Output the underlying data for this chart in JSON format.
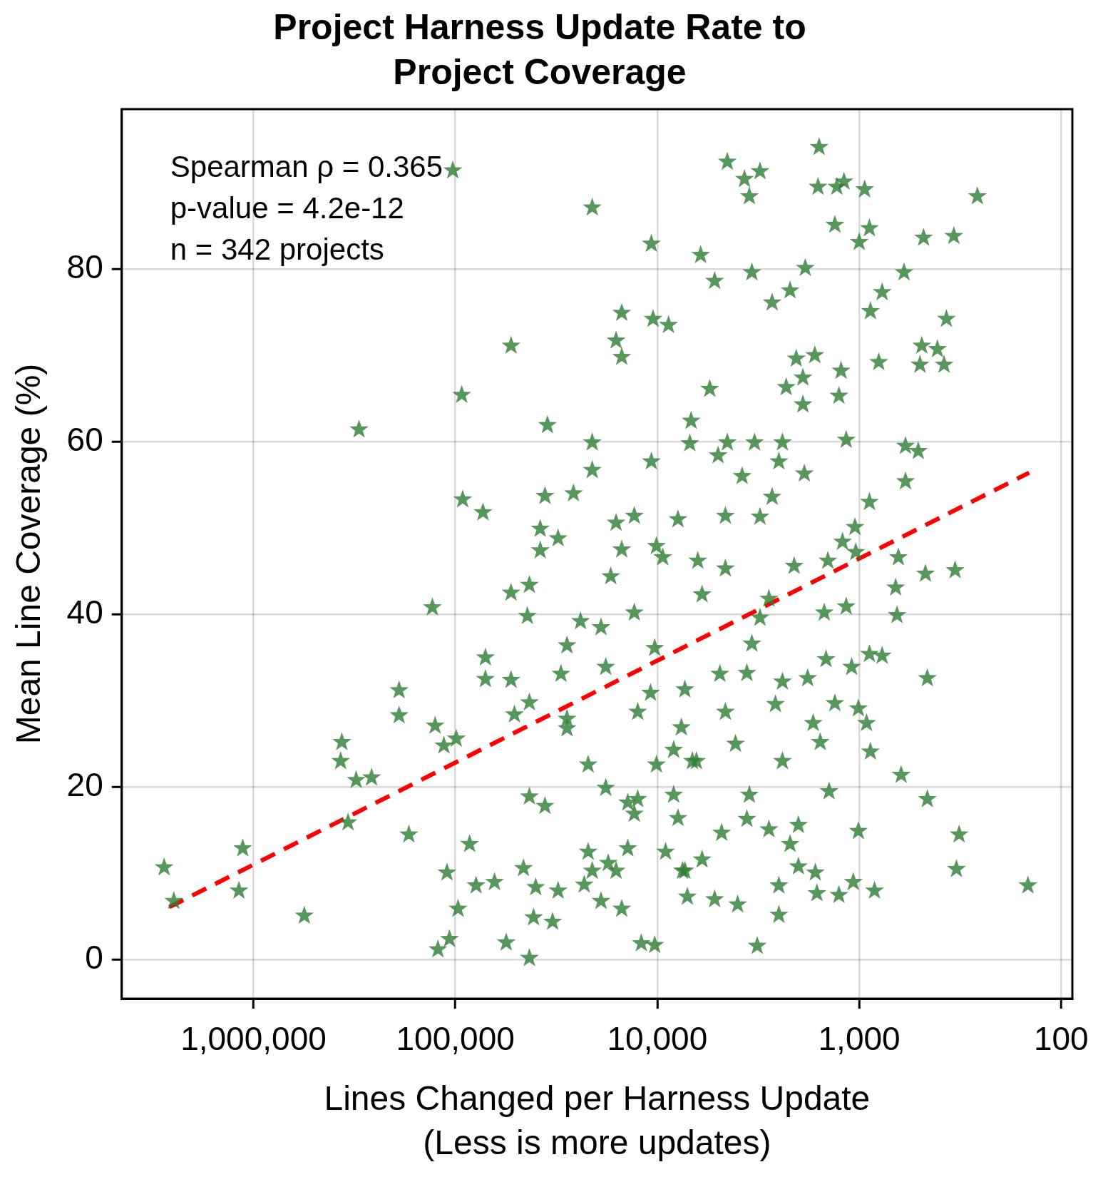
{
  "chart_data": {
    "type": "scatter",
    "title": "Project Harness Update Rate to\nProject Coverage",
    "xlabel": "Lines Changed per Harness Update\n(Less is more updates)",
    "ylabel": "Mean Line Coverage (%)",
    "annotations": [
      "Spearman ρ = 0.365",
      "p-value = 4.2e-12",
      "n = 342 projects"
    ],
    "xlim": [
      4490000,
      88
    ],
    "ylim": [
      -4.5,
      98.5
    ],
    "xticks": [
      {
        "value": 1000000,
        "label": "1,000,000"
      },
      {
        "value": 100000,
        "label": "100,000"
      },
      {
        "value": 10000,
        "label": "10,000"
      },
      {
        "value": 1000,
        "label": "1,000"
      },
      {
        "value": 100,
        "label": "100"
      }
    ],
    "yticks": [
      0,
      20,
      40,
      60,
      80
    ],
    "log": "x",
    "grid": true,
    "legend": false,
    "marker": "star",
    "series": [
      {
        "type": "scatter",
        "color": "#2e7d32",
        "x": [
          2770000,
          2480000,
          1130000,
          1180000,
          560000,
          365000,
          370000,
          300000,
          310000,
          260000,
          340000,
          190000,
          190000,
          170000,
          130000,
          126000,
          114000,
          99000,
          103000,
          93000,
          92000,
          73000,
          122000,
          110000,
          107000,
          97000,
          85000,
          79000,
          71000,
          71000,
          64000,
          53000,
          53000,
          53000,
          51000,
          43000,
          44000,
          43000,
          56000,
          43000,
          46000,
          43000,
          35000,
          36000,
          38000,
          31000,
          38000,
          41000,
          40000,
          36000,
          33000,
          31000,
          30000,
          28000,
          28000,
          24000,
          26000,
          21000,
          21000,
          21000,
          22000,
          22000,
          23000,
          19000,
          18000,
          16000,
          17000,
          15000,
          16000,
          15000,
          15000,
          18000,
          17500,
          15000,
          13000,
          14000,
          13000,
          12500,
          12000,
          10700,
          10700,
          10500,
          10100,
          10300,
          10800,
          10100,
          10300,
          8800,
          9400,
          9100,
          8300,
          7900,
          7300,
          7500,
          6800,
          6900,
          6100,
          5500,
          5200,
          6300,
          6000,
          6400,
          6000,
          5200,
          4500,
          3700,
          3100,
          3500,
          4500,
          5000,
          4600,
          4600,
          4900,
          4600,
          4100,
          4800,
          4000,
          3400,
          3300,
          3800,
          3100,
          3600,
          3400,
          3100,
          3500,
          3600,
          3200,
          2700,
          2200,
          2400,
          2500,
          2700,
          2800,
          2400,
          2600,
          2400,
          2800,
          2500,
          2500,
          2300,
          1850,
          2050,
          1900,
          1900,
          1870,
          2100,
          1800,
          2200,
          2000,
          2000,
          1660,
          1580,
          1600,
          1690,
          1560,
          1430,
          1490,
          1460,
          1410,
          1650,
          1620,
          1290,
          1190,
          1320,
          1230,
          1260,
          1160,
          1210,
          1160,
          1320,
          1260,
          1090,
          1050,
          1040,
          1010,
          1010,
          1070,
          1000,
          940,
          890,
          880,
          770,
          890,
          920,
          880,
          890,
          770,
          840,
          800,
          600,
          590,
          590,
          640,
          660,
          650,
          620,
          510,
          490,
          500,
          480,
          470,
          460,
          460,
          410,
          380,
          370,
          340,
          335,
          320,
          330,
          260,
          146,
          14000,
          13000,
          12500,
          8300,
          7900,
          7300,
          7100,
          6700,
          7600,
          21000,
          19000,
          16000,
          28000
        ],
        "values": [
          10.7,
          6.8,
          12.9,
          8.0,
          5.1,
          25.2,
          23.0,
          61.4,
          20.8,
          21.1,
          15.9,
          31.2,
          28.3,
          14.5,
          40.8,
          27.1,
          24.8,
          25.6,
          91.4,
          65.4,
          53.3,
          51.8,
          1.2,
          10.1,
          2.4,
          5.9,
          13.4,
          8.6,
          35.0,
          32.5,
          9.0,
          71.1,
          42.5,
          32.4,
          28.4,
          43.4,
          39.8,
          29.8,
          2.0,
          0.2,
          10.6,
          18.9,
          61.9,
          53.7,
          49.9,
          48.8,
          47.4,
          4.9,
          8.4,
          17.8,
          4.4,
          8.0,
          33.1,
          36.4,
          26.8,
          39.2,
          54.0,
          87.1,
          59.9,
          56.7,
          22.6,
          12.5,
          8.7,
          38.5,
          33.9,
          50.6,
          44.4,
          74.9,
          71.7,
          69.8,
          47.5,
          19.9,
          11.2,
          5.9,
          51.4,
          18.2,
          40.2,
          28.7,
          1.9,
          82.9,
          57.7,
          74.2,
          47.9,
          36.1,
          30.9,
          22.6,
          1.7,
          73.5,
          46.6,
          12.5,
          24.3,
          51.0,
          31.3,
          10.3,
          62.4,
          59.8,
          81.6,
          66.1,
          78.6,
          46.2,
          42.3,
          23.0,
          11.6,
          7.0,
          92.4,
          90.4,
          91.3,
          88.4,
          59.9,
          58.4,
          51.4,
          45.3,
          33.1,
          28.7,
          25.0,
          14.7,
          6.4,
          79.6,
          59.9,
          56.0,
          51.3,
          33.2,
          36.6,
          39.6,
          19.1,
          16.3,
          1.6,
          76.1,
          77.5,
          59.9,
          57.7,
          53.6,
          41.8,
          32.2,
          29.6,
          23.0,
          15.1,
          8.6,
          5.2,
          66.3,
          80.1,
          69.6,
          67.4,
          64.3,
          56.3,
          45.6,
          32.6,
          13.4,
          10.8,
          15.6,
          70.0,
          94.1,
          89.5,
          27.4,
          25.2,
          46.2,
          40.2,
          34.8,
          19.5,
          10.1,
          7.7,
          89.5,
          90.1,
          85.1,
          68.2,
          65.3,
          60.2,
          48.4,
          40.9,
          29.7,
          7.5,
          33.9,
          50.1,
          47.2,
          29.1,
          14.9,
          9.0,
          83.1,
          89.2,
          84.7,
          75.1,
          77.3,
          53.0,
          27.4,
          24.1,
          35.4,
          35.2,
          8.0,
          69.2,
          79.6,
          59.5,
          55.4,
          46.6,
          43.1,
          39.9,
          21.4,
          58.9,
          71.1,
          68.9,
          83.6,
          44.7,
          32.6,
          18.6,
          70.7,
          68.9,
          74.2,
          83.8,
          45.1,
          14.5,
          10.5,
          88.4,
          8.6,
          12.9,
          16.9,
          18.6,
          19.1,
          16.4,
          10.3,
          7.3,
          23.0,
          26.9,
          10.3,
          6.8,
          10.3,
          27.9
        ]
      },
      {
        "type": "line",
        "color": "#ff0000",
        "line_style": "dashed",
        "marker": "none",
        "x": [
          2610000,
          144
        ],
        "values": [
          6.1,
          56.4
        ]
      }
    ]
  }
}
